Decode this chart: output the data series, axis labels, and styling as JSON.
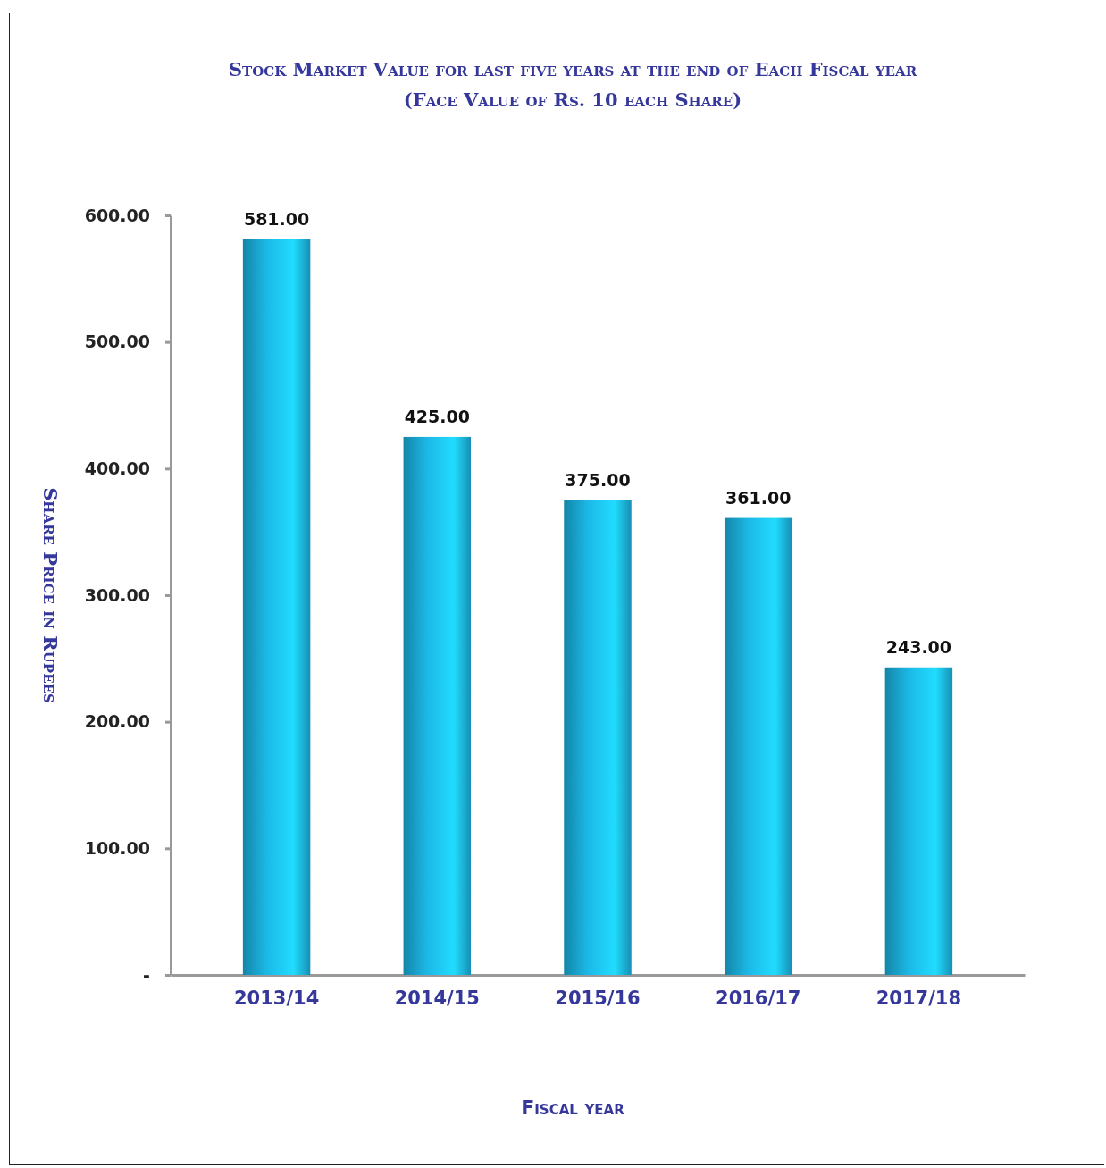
{
  "chart_data": {
    "type": "bar",
    "title": "Stock Market Value for last five years at the end of Each Fiscal year",
    "subtitle": "(Face Value of Rs. 10 each Share)",
    "xlabel": "Fiscal year",
    "ylabel": "Share Price in Rupees",
    "categories": [
      "2013/14",
      "2014/15",
      "2015/16",
      "2016/17",
      "2017/18"
    ],
    "values": [
      581,
      425,
      375,
      361,
      243
    ],
    "value_labels": [
      "581.00",
      "425.00",
      "375.00",
      "361.00",
      "243.00"
    ],
    "color": "#1cb8e6",
    "ylim": [
      0,
      600
    ],
    "yticks": [
      {
        "value": 0,
        "label": "-"
      },
      {
        "value": 100,
        "label": "100.00"
      },
      {
        "value": 200,
        "label": "200.00"
      },
      {
        "value": 300,
        "label": "300.00"
      },
      {
        "value": 400,
        "label": "400.00"
      },
      {
        "value": 500,
        "label": "500.00"
      },
      {
        "value": 600,
        "label": "600.00"
      }
    ],
    "grid": false
  }
}
